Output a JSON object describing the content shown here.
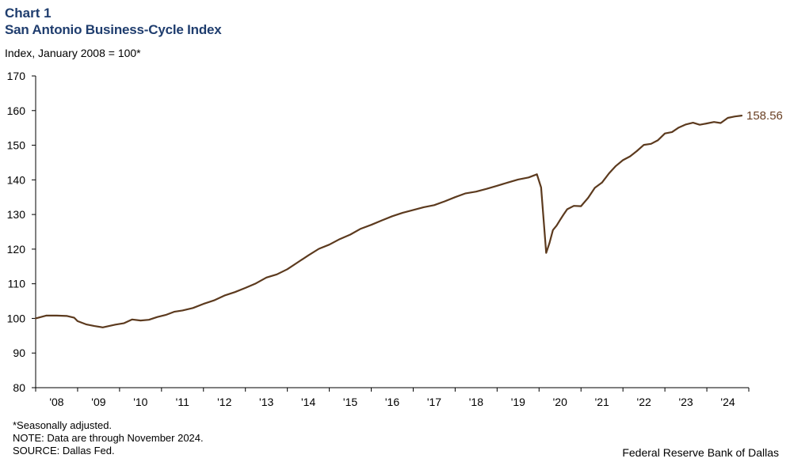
{
  "header": {
    "chart_number": "Chart 1",
    "title": "San Antonio Business-Cycle Index",
    "subtitle": "Index, January 2008 = 100*"
  },
  "footer": {
    "notes": [
      "*Seasonally adjusted.",
      "NOTE: Data are through November 2024.",
      "SOURCE: Dallas Fed."
    ],
    "credit": "Federal Reserve Bank of Dallas"
  },
  "colors": {
    "title": "#1f3d6e",
    "line": "#5c3a1e",
    "end_label": "#6b4226",
    "axis": "#000000"
  },
  "chart_data": {
    "type": "line",
    "title": "San Antonio Business-Cycle Index",
    "ylabel": "Index, January 2008 = 100*",
    "xlabel": "",
    "ylim": [
      80,
      170
    ],
    "yticks": [
      80,
      90,
      100,
      110,
      120,
      130,
      140,
      150,
      160,
      170
    ],
    "xlim": [
      2008.0,
      2025.0
    ],
    "xtick_labels": [
      "'08",
      "'09",
      "'10",
      "'11",
      "'12",
      "'13",
      "'14",
      "'15",
      "'16",
      "'17",
      "'18",
      "'19",
      "'20",
      "'21",
      "'22",
      "'23",
      "'24"
    ],
    "grid": false,
    "end_label": "158.56",
    "series": [
      {
        "values_x": [
          2008.0,
          2008.25,
          2008.5,
          2008.75,
          2008.92,
          2009.0,
          2009.2,
          2009.4,
          2009.6,
          2009.75,
          2009.9,
          2010.1,
          2010.3,
          2010.5,
          2010.7,
          2010.9,
          2011.1,
          2011.3,
          2011.5,
          2011.75,
          2012.0,
          2012.25,
          2012.5,
          2012.75,
          2013.0,
          2013.25,
          2013.5,
          2013.75,
          2014.0,
          2014.25,
          2014.5,
          2014.75,
          2015.0,
          2015.25,
          2015.5,
          2015.75,
          2016.0,
          2016.25,
          2016.5,
          2016.75,
          2017.0,
          2017.25,
          2017.5,
          2017.75,
          2018.0,
          2018.25,
          2018.5,
          2018.75,
          2019.0,
          2019.25,
          2019.5,
          2019.75,
          2019.95,
          2020.05,
          2020.17,
          2020.25,
          2020.33,
          2020.42,
          2020.5,
          2020.58,
          2020.67,
          2020.83,
          2021.0,
          2021.17,
          2021.33,
          2021.5,
          2021.67,
          2021.83,
          2022.0,
          2022.17,
          2022.33,
          2022.5,
          2022.67,
          2022.83,
          2023.0,
          2023.17,
          2023.33,
          2023.5,
          2023.67,
          2023.83,
          2024.0,
          2024.17,
          2024.33,
          2024.5,
          2024.67,
          2024.83
        ],
        "values": [
          100.0,
          100.8,
          100.8,
          100.7,
          100.2,
          99.2,
          98.3,
          97.8,
          97.4,
          97.8,
          98.2,
          98.6,
          99.7,
          99.4,
          99.6,
          100.4,
          101.0,
          101.9,
          102.3,
          103.0,
          104.2,
          105.2,
          106.6,
          107.6,
          108.8,
          110.1,
          111.8,
          112.7,
          114.2,
          116.2,
          118.2,
          120.1,
          121.3,
          122.9,
          124.2,
          125.9,
          127.0,
          128.3,
          129.5,
          130.5,
          131.3,
          132.1,
          132.7,
          133.8,
          135.0,
          136.1,
          136.6,
          137.4,
          138.3,
          139.2,
          140.1,
          140.7,
          141.6,
          137.8,
          118.9,
          121.8,
          125.5,
          126.8,
          128.4,
          129.9,
          131.5,
          132.5,
          132.4,
          134.8,
          137.7,
          139.2,
          141.9,
          144.0,
          145.7,
          146.8,
          148.3,
          150.1,
          150.4,
          151.4,
          153.4,
          153.8,
          155.1,
          156.0,
          156.5,
          155.9,
          156.3,
          156.7,
          156.4,
          157.9,
          158.3,
          158.56
        ]
      }
    ]
  }
}
